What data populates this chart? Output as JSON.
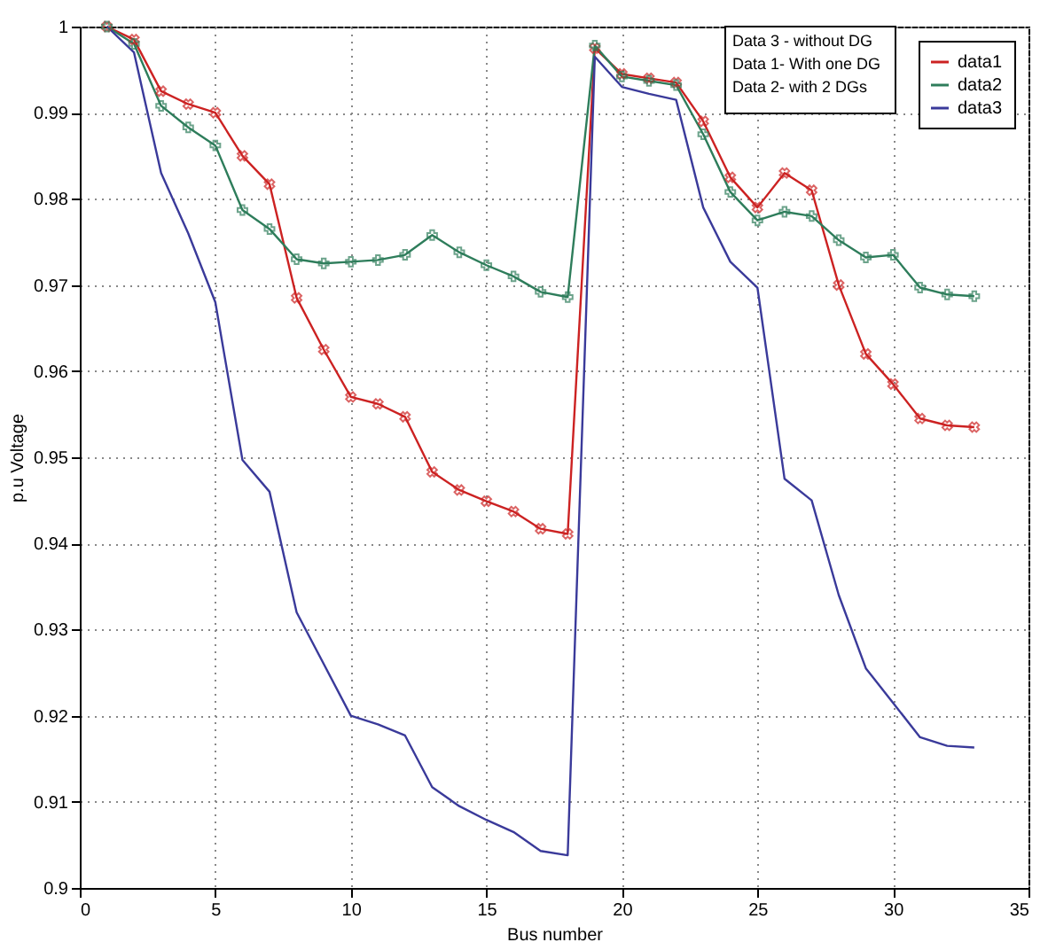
{
  "chart_data": {
    "type": "line",
    "xlabel": "Bus number",
    "ylabel": "p.u Voltage",
    "x": [
      1,
      2,
      3,
      4,
      5,
      6,
      7,
      8,
      9,
      10,
      11,
      12,
      13,
      14,
      15,
      16,
      17,
      18,
      19,
      20,
      21,
      22,
      23,
      24,
      25,
      26,
      27,
      28,
      29,
      30,
      31,
      32,
      33
    ],
    "series": [
      {
        "name": "data1",
        "color": "#cc2222",
        "marker": "cross",
        "values": [
          1.0,
          0.9985,
          0.9925,
          0.991,
          0.99,
          0.985,
          0.9817,
          0.9685,
          0.9625,
          0.957,
          0.9562,
          0.9547,
          0.9483,
          0.9462,
          0.9449,
          0.9437,
          0.9417,
          0.9411,
          0.9975,
          0.9945,
          0.994,
          0.9935,
          0.989,
          0.9825,
          0.979,
          0.983,
          0.981,
          0.97,
          0.962,
          0.9585,
          0.9545,
          0.9537,
          0.9535
        ]
      },
      {
        "name": "data2",
        "color": "#2e7d5b",
        "marker": "cross",
        "values": [
          1.0,
          0.998,
          0.9908,
          0.9883,
          0.9862,
          0.9787,
          0.9765,
          0.973,
          0.9725,
          0.9727,
          0.9729,
          0.9735,
          0.9758,
          0.9738,
          0.9723,
          0.971,
          0.9692,
          0.9686,
          0.9978,
          0.9942,
          0.9937,
          0.9932,
          0.9875,
          0.9808,
          0.9775,
          0.9785,
          0.978,
          0.9752,
          0.9732,
          0.9735,
          0.9697,
          0.9689,
          0.9687
        ]
      },
      {
        "name": "data3",
        "color": "#3a3a9a",
        "marker": "none",
        "values": [
          1.0,
          0.997,
          0.983,
          0.976,
          0.968,
          0.9497,
          0.946,
          0.932,
          0.926,
          0.92,
          0.919,
          0.9177,
          0.9117,
          0.9095,
          0.9079,
          0.9065,
          0.9043,
          0.9038,
          0.9965,
          0.993,
          0.9922,
          0.9915,
          0.979,
          0.9727,
          0.9697,
          0.9475,
          0.945,
          0.934,
          0.9255,
          0.9215,
          0.9175,
          0.9165,
          0.9163
        ]
      }
    ],
    "annotations": [
      "Data 3 - without DG",
      "Data 1- With one DG",
      "Data 2- with 2 DGs"
    ],
    "xlim": [
      0,
      35
    ],
    "xticks": [
      0,
      5,
      10,
      15,
      20,
      25,
      30,
      35
    ],
    "ylim": [
      0.9,
      1
    ],
    "yticks": [
      0.9,
      0.91,
      0.92,
      0.93,
      0.94,
      0.95,
      0.96,
      0.97,
      0.98,
      0.99,
      1
    ],
    "grid": true,
    "legend": "top right",
    "line_style": "solid"
  }
}
